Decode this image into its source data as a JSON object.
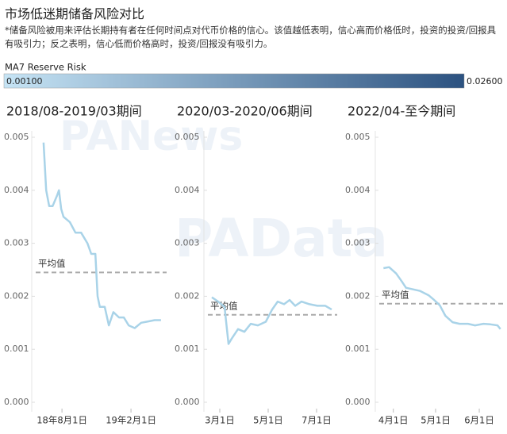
{
  "title": "市场低迷期储备风险对比",
  "subtitle": "*储备风险被用来评估长期持有者在任何时间点对代币价格的信心。该值越低表明，信心高而价格低时，投资的投资/回报具有吸引力；反之表明，信心低而价格高时，投资/回报没有吸引力。",
  "color_scale": {
    "title": "MA7 Reserve Risk",
    "colors": [
      "#c6e4f5",
      "#2c5280"
    ],
    "min": {
      "value": 0.001,
      "label": "0.00100"
    },
    "max": {
      "value": 0.026,
      "label": "0.02600"
    }
  },
  "watermarks": [
    "PANews",
    "PAData"
  ],
  "chart_data": [
    {
      "type": "line",
      "title": "2018/08-2019/03期间",
      "color": "#a9d3e8",
      "x": [
        "2018-06-13",
        "2018-06-20",
        "2018-06-28",
        "2018-07-07",
        "2018-07-19",
        "2018-07-24",
        "2018-07-30",
        "2018-08-05",
        "2018-08-22",
        "2018-09-06",
        "2018-09-21",
        "2018-10-08",
        "2018-10-18",
        "2018-10-29",
        "2018-11-04",
        "2018-11-10",
        "2018-11-23",
        "2018-12-04",
        "2018-12-16",
        "2018-12-31",
        "2019-01-13",
        "2019-01-26",
        "2019-02-11",
        "2019-02-28",
        "2019-03-15",
        "2019-04-05",
        "2019-04-22"
      ],
      "values": [
        0.0049,
        0.004,
        0.0037,
        0.0037,
        0.0039,
        0.004,
        0.00365,
        0.0035,
        0.0034,
        0.0032,
        0.0032,
        0.003,
        0.0028,
        0.0028,
        0.002,
        0.0018,
        0.0018,
        0.00145,
        0.0017,
        0.0016,
        0.0016,
        0.00145,
        0.0014,
        0.0015,
        0.00152,
        0.00155,
        0.00155
      ],
      "xlim": [
        "2018-05-23",
        "2019-05-07"
      ],
      "xticks": [
        {
          "value": "2018-08-01",
          "label": "18年8月1日"
        },
        {
          "value": "2019-02-01",
          "label": "19年2月1日"
        }
      ],
      "ylim": [
        0,
        0.005
      ],
      "yticks": [
        {
          "value": 0,
          "label": "0.000"
        },
        0.001,
        0.002,
        0.003,
        0.004,
        0.005
      ],
      "reference_line": {
        "label": "平均值",
        "value": 0.00245,
        "color": "#aaaaaa"
      }
    },
    {
      "type": "line",
      "title": "2020/03-2020/06期间",
      "color": "#a9d3e8",
      "x": [
        "2020-02-20",
        "2020-02-28",
        "2020-03-07",
        "2020-03-12",
        "2020-03-16",
        "2020-03-24",
        "2020-04-01",
        "2020-04-09",
        "2020-04-18",
        "2020-04-28",
        "2020-05-06",
        "2020-05-13",
        "2020-05-21",
        "2020-05-28",
        "2020-06-04",
        "2020-06-12",
        "2020-06-22",
        "2020-07-02",
        "2020-07-12",
        "2020-07-20"
      ],
      "values": [
        0.00198,
        0.0019,
        0.0018,
        0.0011,
        0.0012,
        0.00138,
        0.00133,
        0.00148,
        0.00145,
        0.00152,
        0.00175,
        0.0019,
        0.00185,
        0.00193,
        0.00182,
        0.0019,
        0.00185,
        0.00182,
        0.00182,
        0.00175
      ],
      "xlim": [
        "2020-02-15",
        "2020-07-27"
      ],
      "xticks": [
        {
          "value": "2020-03-01",
          "label": "3月1日"
        },
        {
          "value": "2020-05-01",
          "label": "5月1日"
        },
        {
          "value": "2020-07-01",
          "label": "7月1日"
        }
      ],
      "ylim": [
        0,
        0.005
      ],
      "yticks": [
        {
          "value": 0,
          "label": "0.000"
        },
        0.001,
        0.002,
        0.003,
        0.004,
        0.005
      ],
      "reference_line": {
        "label": "平均值",
        "value": 0.00165,
        "color": "#aaaaaa"
      }
    },
    {
      "type": "line",
      "title": "2022/04-至今期间",
      "color": "#a9d3e8",
      "x": [
        "2022-03-25",
        "2022-03-29",
        "2022-04-03",
        "2022-04-07",
        "2022-04-10",
        "2022-04-15",
        "2022-04-20",
        "2022-04-26",
        "2022-04-30",
        "2022-05-04",
        "2022-05-08",
        "2022-05-13",
        "2022-05-18",
        "2022-05-24",
        "2022-05-29",
        "2022-06-04",
        "2022-06-09",
        "2022-06-14",
        "2022-06-16"
      ],
      "values": [
        0.00253,
        0.00255,
        0.00243,
        0.00228,
        0.00216,
        0.00213,
        0.0021,
        0.00202,
        0.00193,
        0.00183,
        0.00163,
        0.00151,
        0.00148,
        0.00148,
        0.00145,
        0.00148,
        0.00147,
        0.00145,
        0.00138
      ],
      "xlim": [
        "2022-03-22",
        "2022-06-19"
      ],
      "xticks": [
        {
          "value": "2022-04-01",
          "label": "4月1日"
        },
        {
          "value": "2022-05-01",
          "label": "5月1日"
        },
        {
          "value": "2022-06-01",
          "label": "6月1日"
        }
      ],
      "ylim": [
        0,
        0.005
      ],
      "yticks": [
        {
          "value": 0,
          "label": "0.000"
        },
        0.001,
        0.002,
        0.003,
        0.004,
        0.005
      ],
      "reference_line": {
        "label": "平均值",
        "value": 0.00186,
        "color": "#aaaaaa"
      }
    }
  ]
}
